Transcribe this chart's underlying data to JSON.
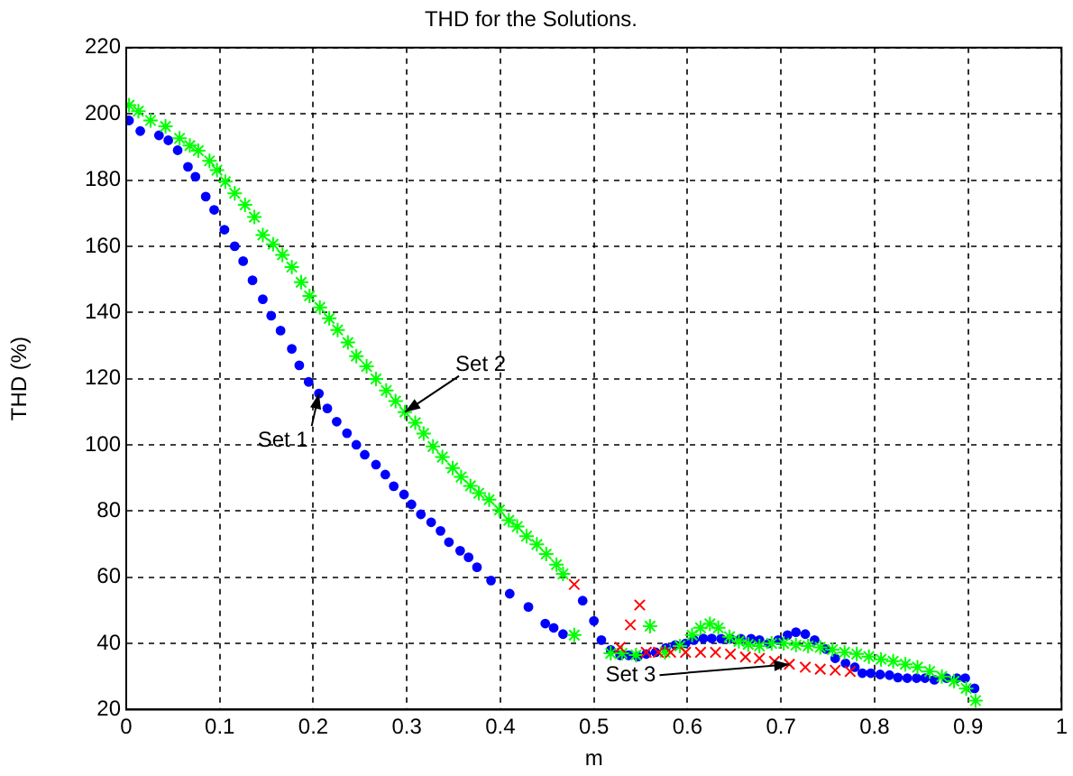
{
  "chart_data": {
    "type": "scatter",
    "title": "THD for the Solutions.",
    "xlabel": "m",
    "ylabel": "THD (%)",
    "xlim": [
      0,
      1
    ],
    "xticks": [
      0,
      0.1,
      0.2,
      0.3,
      0.4,
      0.5,
      0.6,
      0.7,
      0.8,
      0.9,
      1
    ],
    "ylim": [
      20,
      220
    ],
    "yticks": [
      20,
      40,
      60,
      80,
      100,
      120,
      140,
      160,
      180,
      200,
      220
    ],
    "grid": true,
    "legend": false,
    "series": [
      {
        "color": "#0000ff",
        "marker": "circle",
        "x": [
          0.003,
          0.015,
          0.035,
          0.045,
          0.055,
          0.066,
          0.074,
          0.085,
          0.094,
          0.105,
          0.116,
          0.125,
          0.135,
          0.146,
          0.155,
          0.165,
          0.177,
          0.185,
          0.195,
          0.206,
          0.215,
          0.225,
          0.236,
          0.246,
          0.255,
          0.267,
          0.277,
          0.286,
          0.297,
          0.305,
          0.315,
          0.326,
          0.336,
          0.345,
          0.357,
          0.366,
          0.375,
          0.39,
          0.41,
          0.43,
          0.448,
          0.457,
          0.467,
          0.488,
          0.5,
          0.508,
          0.518,
          0.528,
          0.537,
          0.547,
          0.556,
          0.566,
          0.577,
          0.587,
          0.598,
          0.607,
          0.617,
          0.626,
          0.636,
          0.646,
          0.657,
          0.668,
          0.677,
          0.687,
          0.697,
          0.707,
          0.716,
          0.726,
          0.736,
          0.748,
          0.758,
          0.769,
          0.779,
          0.787,
          0.796,
          0.806,
          0.816,
          0.825,
          0.835,
          0.845,
          0.854,
          0.864,
          0.877,
          0.888,
          0.897,
          0.907
        ],
        "values": [
          198,
          194.8,
          193.5,
          192,
          189,
          184,
          181,
          175,
          171,
          165,
          160,
          155.5,
          149.7,
          144,
          139,
          134.5,
          129,
          124,
          119,
          115.5,
          111,
          107,
          103.5,
          100,
          97,
          94,
          91,
          87.5,
          85,
          82,
          79,
          76.6,
          74,
          70.6,
          68,
          66,
          63,
          59,
          55,
          51,
          46,
          44.7,
          42.8,
          52.9,
          46.8,
          41,
          38,
          36.4,
          36.4,
          36,
          36.8,
          37.3,
          38.6,
          39.5,
          40,
          41,
          41.5,
          41.5,
          41.4,
          41.4,
          41.4,
          41.4,
          41,
          40,
          41,
          42.5,
          43.4,
          42.8,
          41,
          38.3,
          35.5,
          34,
          32.8,
          31,
          31,
          30.6,
          30.4,
          29.7,
          29.5,
          29.5,
          29.5,
          29,
          29.5,
          29.5,
          29.5,
          26.4
        ]
      },
      {
        "color": "#00ff00",
        "marker": "cross",
        "x": [
          0.003,
          0.013,
          0.026,
          0.042,
          0.057,
          0.068,
          0.077,
          0.089,
          0.097,
          0.106,
          0.116,
          0.127,
          0.137,
          0.146,
          0.157,
          0.167,
          0.177,
          0.187,
          0.196,
          0.207,
          0.217,
          0.226,
          0.237,
          0.246,
          0.257,
          0.267,
          0.278,
          0.288,
          0.298,
          0.309,
          0.318,
          0.328,
          0.338,
          0.349,
          0.358,
          0.368,
          0.377,
          0.388,
          0.399,
          0.409,
          0.418,
          0.428,
          0.439,
          0.449,
          0.46,
          0.467,
          0.479,
          0.518,
          0.53,
          0.545,
          0.56,
          0.576,
          0.592,
          0.605,
          0.614,
          0.624,
          0.633,
          0.645,
          0.655,
          0.665,
          0.677,
          0.69,
          0.703,
          0.716,
          0.729,
          0.742,
          0.755,
          0.768,
          0.781,
          0.794,
          0.807,
          0.82,
          0.833,
          0.846,
          0.859,
          0.872,
          0.885,
          0.898,
          0.908
        ],
        "values": [
          202.6,
          200.8,
          198,
          196.2,
          192.6,
          190.4,
          188.9,
          185.8,
          183,
          179.5,
          176,
          172.5,
          168.8,
          163.4,
          160.6,
          157.4,
          153.7,
          149.1,
          145,
          141.5,
          138.2,
          134.7,
          130.9,
          126.8,
          123.7,
          119.9,
          116.4,
          113.2,
          109.9,
          106.7,
          103.4,
          99.5,
          96.3,
          93,
          90.3,
          87.6,
          85.4,
          83.4,
          80.3,
          77.2,
          75.3,
          72.4,
          69.9,
          67,
          63.8,
          61,
          42.5,
          37,
          37,
          36.5,
          45.2,
          37.3,
          39.2,
          42.5,
          44.7,
          45.9,
          44.7,
          42,
          40.6,
          39.7,
          39.2,
          40,
          40,
          39.5,
          39.2,
          38.8,
          38.1,
          37.3,
          36.8,
          36,
          35.2,
          34.6,
          33.7,
          32.8,
          31.5,
          30,
          28.6,
          26.4,
          22.7
        ]
      },
      {
        "color": "#ff0000",
        "marker": "cross",
        "x": [
          0.479,
          0.528,
          0.539,
          0.549,
          0.556,
          0.569,
          0.582,
          0.598,
          0.614,
          0.63,
          0.646,
          0.662,
          0.677,
          0.693,
          0.709,
          0.726,
          0.742,
          0.758,
          0.774
        ],
        "values": [
          57.8,
          38.8,
          45.6,
          51.6,
          37.3,
          37.3,
          37.3,
          37.3,
          37.3,
          37.3,
          36.8,
          35.9,
          35.5,
          34.6,
          33.7,
          32.8,
          32.2,
          31.9,
          31.5
        ]
      }
    ],
    "annotations": [
      {
        "text": "Set 1",
        "x": 0.206,
        "y": 115.5
      },
      {
        "text": "Set 2",
        "x": 0.298,
        "y": 109.9
      },
      {
        "text": "Set 3",
        "x": 0.709,
        "y": 33.7
      }
    ]
  }
}
